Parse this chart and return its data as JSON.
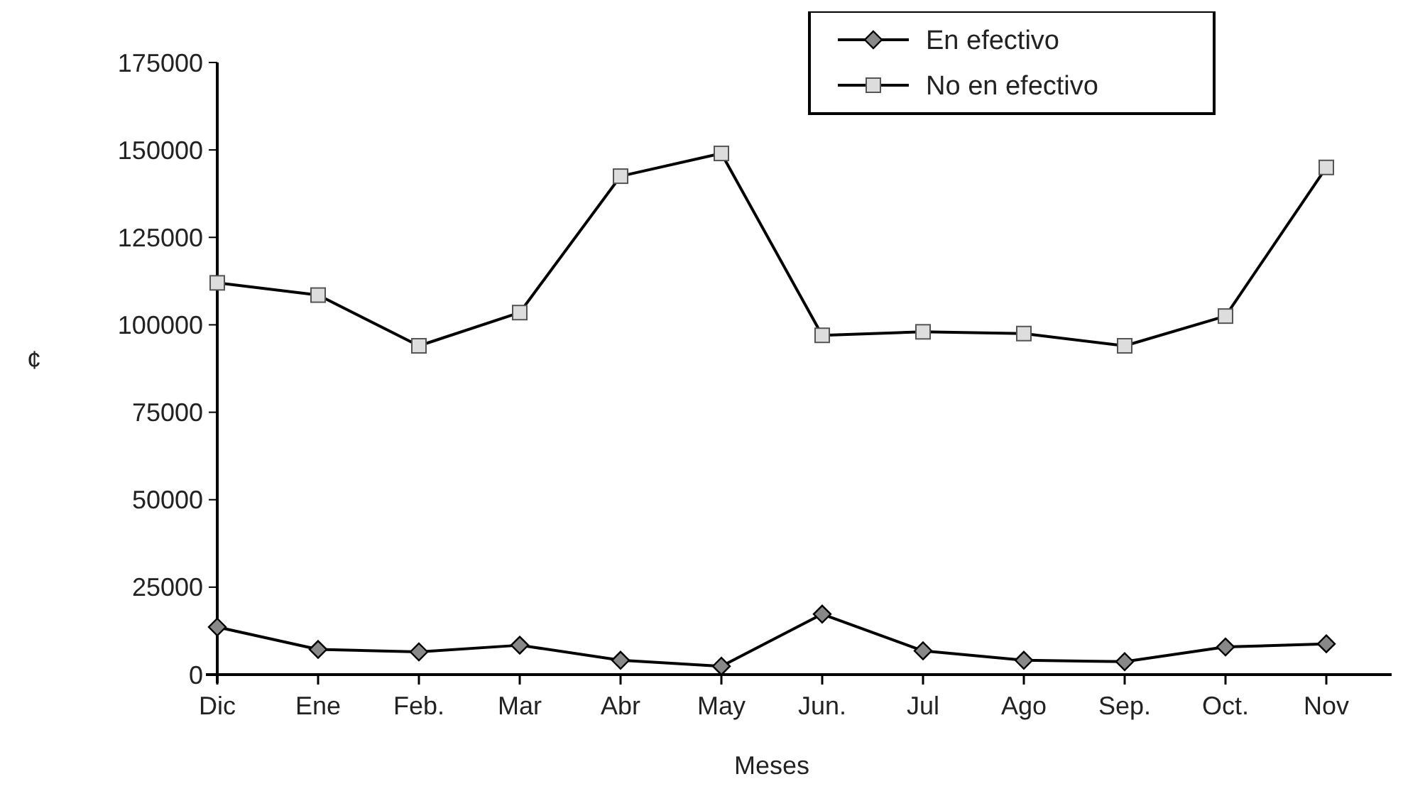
{
  "chart_data": {
    "type": "line",
    "xlabel": "Meses",
    "ylabel": "¢",
    "categories": [
      "Dic",
      "Ene",
      "Feb.",
      "Mar",
      "Abr",
      "May",
      "Jun.",
      "Jul",
      "Ago",
      "Sep.",
      "Oct.",
      "Nov"
    ],
    "series": [
      {
        "name": "En efectivo",
        "color": "#000000",
        "marker": "diamond",
        "values": [
          13600,
          7200,
          6500,
          8400,
          4100,
          2400,
          17300,
          6800,
          4100,
          3700,
          7900,
          8800
        ]
      },
      {
        "name": "No en efectivo",
        "color": "#000000",
        "marker": "square",
        "values": [
          112000,
          108500,
          94000,
          103500,
          142500,
          149000,
          97000,
          98000,
          97500,
          94000,
          102500,
          145000
        ]
      }
    ],
    "ylim": [
      0,
      175000
    ],
    "yticks": [
      0,
      25000,
      50000,
      75000,
      100000,
      125000,
      150000,
      175000
    ],
    "grid": false,
    "legend": "top right",
    "line_style": "solid"
  }
}
